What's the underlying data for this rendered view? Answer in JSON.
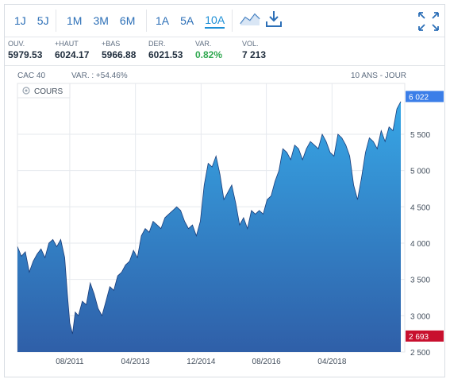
{
  "toolbar": {
    "periods_short": [
      "1J",
      "5J"
    ],
    "periods_mid": [
      "1M",
      "3M",
      "6M"
    ],
    "periods_long": [
      "1A",
      "5A",
      "10A"
    ],
    "active_period": "10A",
    "icons": [
      "line-chart-icon",
      "download-icon",
      "expand-icon"
    ]
  },
  "stats": [
    {
      "label": "OUV.",
      "value": "5979.53"
    },
    {
      "label": "+HAUT",
      "value": "6024.17"
    },
    {
      "label": "+BAS",
      "value": "5966.88"
    },
    {
      "label": "DER.",
      "value": "6021.53"
    },
    {
      "label": "VAR.",
      "value": "0.82%"
    },
    {
      "label": "VOL.",
      "value": "7 213"
    }
  ],
  "chart_header": {
    "index": "CAC 40",
    "variation": "VAR. : +54.46%",
    "range": "10 ANS - JOUR",
    "series_label": "COURS"
  },
  "colors": {
    "accent": "#1d8fd6",
    "area_top": "#37a7e6",
    "area_bottom": "#2f5fa8",
    "line": "#1a3d7a",
    "last_badge": "#3b7ee8",
    "min_badge": "#c8102e",
    "positive": "#2fa84f"
  },
  "chart_data": {
    "type": "area",
    "title": "CAC 40",
    "ylim": [
      2500,
      6200
    ],
    "yticks": [
      2500,
      3000,
      3500,
      4000,
      4500,
      5000,
      5500
    ],
    "ytick_labels": [
      "2 500",
      "3 000",
      "3 500",
      "4 000",
      "4 500",
      "5 000",
      "5 500"
    ],
    "xlim": [
      2010.25,
      2020.1
    ],
    "xticks": [
      2011.58,
      2013.25,
      2014.92,
      2016.58,
      2018.25
    ],
    "xtick_labels": [
      "08/2011",
      "04/2013",
      "12/2014",
      "08/2016",
      "04/2018"
    ],
    "last_value_label": "6 022",
    "min_value_label": "2 693",
    "x": [
      2010.25,
      2010.35,
      2010.45,
      2010.55,
      2010.65,
      2010.75,
      2010.85,
      2010.95,
      2011.05,
      2011.15,
      2011.25,
      2011.35,
      2011.45,
      2011.52,
      2011.58,
      2011.65,
      2011.72,
      2011.8,
      2011.9,
      2012.0,
      2012.1,
      2012.2,
      2012.3,
      2012.4,
      2012.5,
      2012.6,
      2012.7,
      2012.8,
      2012.9,
      2013.0,
      2013.1,
      2013.2,
      2013.3,
      2013.4,
      2013.5,
      2013.6,
      2013.7,
      2013.8,
      2013.9,
      2014.0,
      2014.1,
      2014.2,
      2014.3,
      2014.4,
      2014.5,
      2014.6,
      2014.7,
      2014.8,
      2014.9,
      2015.0,
      2015.1,
      2015.2,
      2015.3,
      2015.4,
      2015.5,
      2015.6,
      2015.7,
      2015.8,
      2015.9,
      2016.0,
      2016.1,
      2016.2,
      2016.3,
      2016.4,
      2016.5,
      2016.6,
      2016.7,
      2016.8,
      2016.9,
      2017.0,
      2017.1,
      2017.2,
      2017.3,
      2017.4,
      2017.5,
      2017.6,
      2017.7,
      2017.8,
      2017.9,
      2018.0,
      2018.1,
      2018.2,
      2018.3,
      2018.4,
      2018.5,
      2018.6,
      2018.7,
      2018.8,
      2018.9,
      2019.0,
      2019.1,
      2019.2,
      2019.3,
      2019.4,
      2019.5,
      2019.6,
      2019.7,
      2019.8,
      2019.9,
      2020.0
    ],
    "series": [
      {
        "name": "COURS",
        "values": [
          3950,
          3820,
          3880,
          3600,
          3750,
          3850,
          3920,
          3800,
          4000,
          4050,
          3950,
          4050,
          3800,
          3300,
          2900,
          2750,
          3050,
          3000,
          3200,
          3150,
          3450,
          3300,
          3100,
          3000,
          3200,
          3400,
          3350,
          3550,
          3600,
          3700,
          3750,
          3900,
          3800,
          4100,
          4200,
          4150,
          4300,
          4250,
          4200,
          4350,
          4400,
          4450,
          4500,
          4450,
          4300,
          4200,
          4250,
          4100,
          4300,
          4800,
          5100,
          5050,
          5200,
          4950,
          4600,
          4700,
          4800,
          4550,
          4250,
          4350,
          4200,
          4450,
          4400,
          4450,
          4400,
          4600,
          4650,
          4850,
          5000,
          5300,
          5250,
          5150,
          5350,
          5300,
          5150,
          5300,
          5400,
          5350,
          5300,
          5500,
          5400,
          5250,
          5200,
          5500,
          5450,
          5350,
          5200,
          4800,
          4600,
          4900,
          5250,
          5450,
          5400,
          5300,
          5550,
          5400,
          5600,
          5550,
          5850,
          5950
        ]
      }
    ],
    "grid": true
  }
}
